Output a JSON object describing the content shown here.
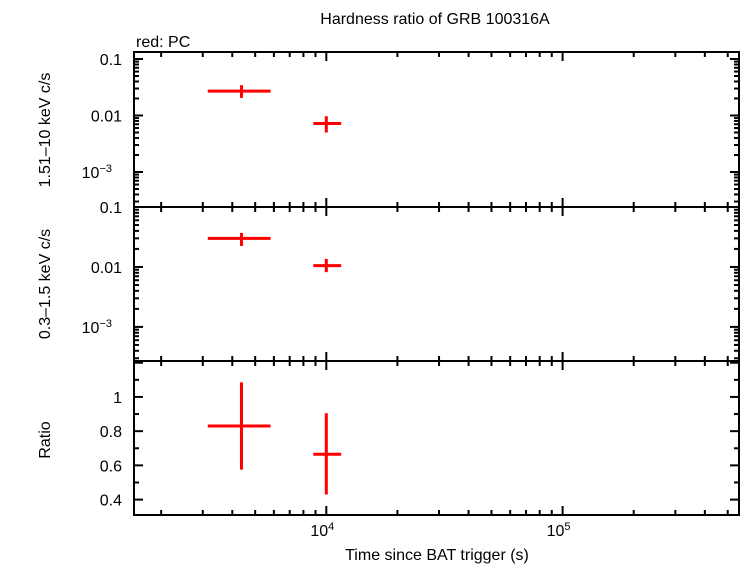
{
  "chart_data": [
    {
      "type": "scatter",
      "title": "Hardness ratio of GRB 100316A",
      "legend_note": "red: PC",
      "ylabel": "1.51–10 keV c/s",
      "xscale": "log",
      "yscale": "log",
      "xlim": [
        1535,
        558000
      ],
      "ylim": [
        0.00024,
        0.133
      ],
      "yticks": [
        {
          "v": 0.1,
          "label": "0.1"
        },
        {
          "v": 0.01,
          "label": "0.01"
        },
        {
          "v": 0.001,
          "label": "10",
          "sup": "−3"
        }
      ],
      "series": [
        {
          "color": "#ff0000",
          "points": [
            {
              "x": 4375,
              "xlo": 3150,
              "xhi": 5810,
              "y": 0.027,
              "ylo": 0.0205,
              "yhi": 0.0344
            },
            {
              "x": 10000,
              "xlo": 8810,
              "xhi": 11560,
              "y": 0.0072,
              "ylo": 0.005,
              "yhi": 0.0097
            }
          ]
        }
      ]
    },
    {
      "type": "scatter",
      "ylabel": "0.3–1.5 keV c/s",
      "xscale": "log",
      "yscale": "log",
      "xlim": [
        1535,
        558000
      ],
      "ylim": [
        0.00027,
        0.1
      ],
      "yticks": [
        {
          "v": 0.1,
          "label": "0.1"
        },
        {
          "v": 0.01,
          "label": "0.01"
        },
        {
          "v": 0.001,
          "label": "10",
          "sup": "−3"
        }
      ],
      "series": [
        {
          "color": "#ff0000",
          "points": [
            {
              "x": 4375,
              "xlo": 3150,
              "xhi": 5810,
              "y": 0.03,
              "ylo": 0.0224,
              "yhi": 0.037
            },
            {
              "x": 10000,
              "xlo": 8810,
              "xhi": 11560,
              "y": 0.0105,
              "ylo": 0.0082,
              "yhi": 0.0136
            }
          ]
        }
      ]
    },
    {
      "type": "scatter",
      "ylabel": "Ratio",
      "xlabel": "Time since BAT trigger (s)",
      "xscale": "log",
      "yscale": "linear",
      "xlim": [
        1535,
        558000
      ],
      "ylim": [
        0.31,
        1.21
      ],
      "yticks": [
        {
          "v": 1,
          "label": "1"
        },
        {
          "v": 0.8,
          "label": "0.8"
        },
        {
          "v": 0.6,
          "label": "0.6"
        },
        {
          "v": 0.4,
          "label": "0.4"
        }
      ],
      "xticks": [
        {
          "v": 10000,
          "label": "10",
          "sup": "4"
        },
        {
          "v": 100000,
          "label": "10",
          "sup": "5"
        }
      ],
      "series": [
        {
          "color": "#ff0000",
          "points": [
            {
              "x": 4375,
              "xlo": 3150,
              "xhi": 5810,
              "y": 0.83,
              "ylo": 0.575,
              "yhi": 1.085
            },
            {
              "x": 10000,
              "xlo": 8810,
              "xhi": 11560,
              "y": 0.665,
              "ylo": 0.43,
              "yhi": 0.905
            }
          ]
        }
      ]
    }
  ]
}
